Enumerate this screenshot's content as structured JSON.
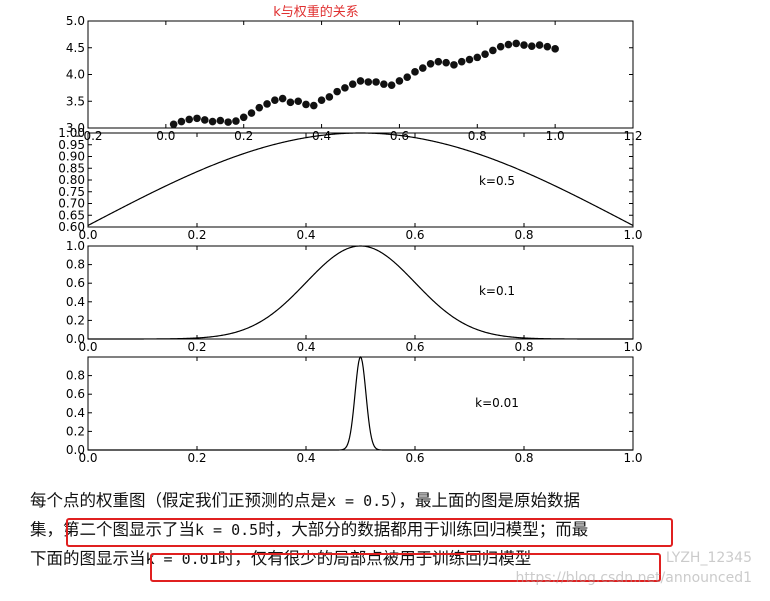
{
  "figure_title": "k与权重的关系",
  "chart_data": [
    {
      "type": "scatter",
      "title": "",
      "x": [
        0.02,
        0.04,
        0.06,
        0.08,
        0.1,
        0.12,
        0.14,
        0.16,
        0.18,
        0.2,
        0.22,
        0.24,
        0.26,
        0.28,
        0.3,
        0.32,
        0.34,
        0.36,
        0.38,
        0.4,
        0.42,
        0.44,
        0.46,
        0.48,
        0.5,
        0.52,
        0.54,
        0.56,
        0.58,
        0.6,
        0.62,
        0.64,
        0.66,
        0.68,
        0.7,
        0.72,
        0.74,
        0.76,
        0.78,
        0.8,
        0.82,
        0.84,
        0.86,
        0.88,
        0.9,
        0.92,
        0.94,
        0.96,
        0.98,
        1.0
      ],
      "values": [
        3.07,
        3.12,
        3.16,
        3.18,
        3.15,
        3.12,
        3.14,
        3.11,
        3.13,
        3.2,
        3.28,
        3.38,
        3.45,
        3.52,
        3.55,
        3.48,
        3.5,
        3.44,
        3.42,
        3.52,
        3.58,
        3.68,
        3.75,
        3.82,
        3.88,
        3.86,
        3.86,
        3.82,
        3.8,
        3.88,
        3.95,
        4.05,
        4.12,
        4.2,
        4.24,
        4.22,
        4.18,
        4.24,
        4.28,
        4.32,
        4.38,
        4.45,
        4.52,
        4.56,
        4.58,
        4.55,
        4.53,
        4.55,
        4.52,
        4.48
      ],
      "xlim": [
        -0.2,
        1.2
      ],
      "ylim": [
        3.0,
        5.0
      ],
      "xticks": [
        "−0.2",
        "0.0",
        "0.2",
        "0.4",
        "0.6",
        "0.8",
        "1.0",
        "1.2"
      ],
      "yticks": [
        "5.0",
        "4.5",
        "4.0",
        "3.5",
        "3.0"
      ]
    },
    {
      "type": "line",
      "annotation": "k=0.5",
      "k": 0.5,
      "xlim": [
        0.0,
        1.0
      ],
      "ylim": [
        0.6,
        1.0
      ],
      "xticks": [
        "0.0",
        "0.2",
        "0.4",
        "0.6",
        "0.8",
        "1.0"
      ],
      "yticks": [
        "1.00",
        "0.95",
        "0.90",
        "0.85",
        "0.80",
        "0.75",
        "0.70",
        "0.65",
        "0.60"
      ]
    },
    {
      "type": "line",
      "annotation": "k=0.1",
      "k": 0.1,
      "xlim": [
        0.0,
        1.0
      ],
      "ylim": [
        0.0,
        1.0
      ],
      "xticks": [
        "0.0",
        "0.2",
        "0.4",
        "0.6",
        "0.8",
        "1.0"
      ],
      "yticks": [
        "1.0",
        "0.8",
        "0.6",
        "0.4",
        "0.2",
        "0.0"
      ]
    },
    {
      "type": "line",
      "annotation": "k=0.01",
      "k": 0.01,
      "xlim": [
        0.0,
        1.0
      ],
      "ylim": [
        0.0,
        1.0
      ],
      "xticks": [
        "0.0",
        "0.2",
        "0.4",
        "0.6",
        "0.8",
        "1.0"
      ],
      "yticks": [
        "0.8",
        "0.6",
        "0.4",
        "0.2",
        "0.0"
      ]
    }
  ],
  "caption": {
    "l1a": "每个点的权重图（假定我们正预测的点是",
    "l1code": "x = 0.5",
    "l1b": "），最上面的图是原始数据",
    "l2a": "集，",
    "l2b": "第二个图显示了当",
    "l2code": "k = 0.5",
    "l2c": "时，大部分的数据都用于训练回归模型；",
    "l2d": "而最",
    "l3a": "下面的图显示",
    "l3b": "当",
    "l3code": "k = 0.01",
    "l3c": "时，仅有很少的局部点被用于训练回归模型"
  },
  "watermark": {
    "line1": "LYZH_12345",
    "line2": "https://blog.csdn.net/announced1"
  }
}
